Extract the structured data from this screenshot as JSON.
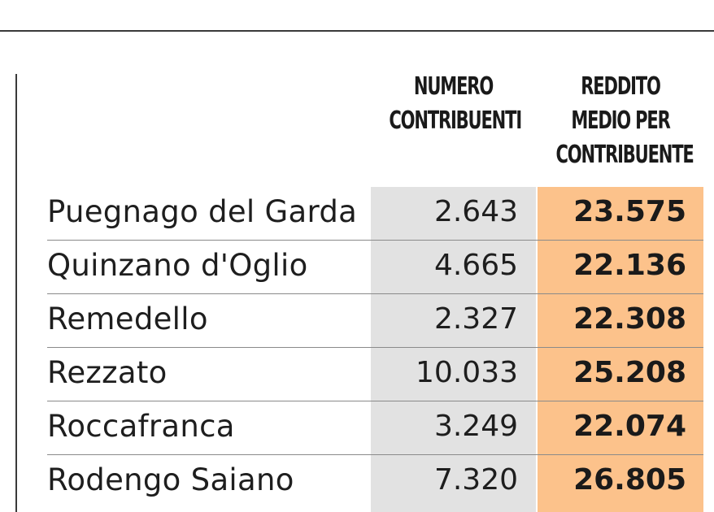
{
  "table": {
    "headers": {
      "numero": [
        "NUMERO",
        "CONTRIBUENTI"
      ],
      "reddito": [
        "REDDITO",
        "MEDIO PER",
        "CONTRIBUENTE"
      ]
    },
    "rows": [
      {
        "comune": "Puegnago del Garda",
        "numero_contribuenti": "2.643",
        "reddito_medio": "23.575"
      },
      {
        "comune": "Quinzano d'Oglio",
        "numero_contribuenti": "4.665",
        "reddito_medio": "22.136"
      },
      {
        "comune": "Remedello",
        "numero_contribuenti": "2.327",
        "reddito_medio": "22.308"
      },
      {
        "comune": "Rezzato",
        "numero_contribuenti": "10.033",
        "reddito_medio": "25.208"
      },
      {
        "comune": "Roccafranca",
        "numero_contribuenti": "3.249",
        "reddito_medio": "22.074"
      },
      {
        "comune": "Rodengo Saiano",
        "numero_contribuenti": "7.320",
        "reddito_medio": "26.805"
      }
    ]
  },
  "colors": {
    "numero_column_bg": "#e2e2e2",
    "reddito_column_bg": "#fcc28b"
  }
}
